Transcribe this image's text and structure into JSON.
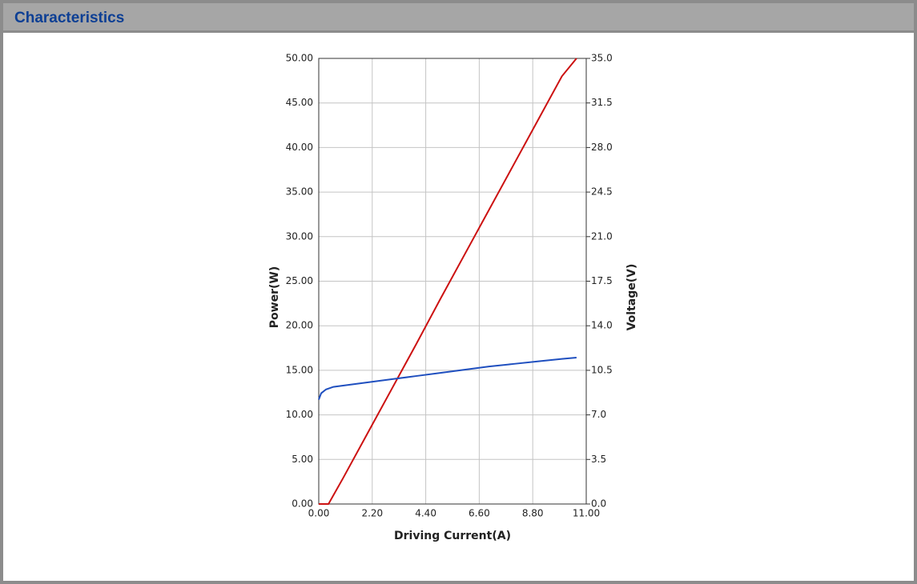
{
  "header": {
    "title": "Characteristics"
  },
  "chart_data": {
    "type": "line",
    "xlabel": "Driving Current(A)",
    "ylabel": "Power(W)",
    "y2label": "Voltage(V)",
    "xlim": [
      0,
      11
    ],
    "ylim": [
      0,
      50
    ],
    "y2lim": [
      0,
      35
    ],
    "xticks": [
      {
        "value": 0,
        "label": "0.00"
      },
      {
        "value": 2.2,
        "label": "2.20"
      },
      {
        "value": 4.4,
        "label": "4.40"
      },
      {
        "value": 6.6,
        "label": "6.60"
      },
      {
        "value": 8.8,
        "label": "8.80"
      },
      {
        "value": 11,
        "label": "11.00"
      }
    ],
    "yticks": [
      {
        "value": 0,
        "label": "0.00"
      },
      {
        "value": 5,
        "label": "5.00"
      },
      {
        "value": 10,
        "label": "10.00"
      },
      {
        "value": 15,
        "label": "15.00"
      },
      {
        "value": 20,
        "label": "20.00"
      },
      {
        "value": 25,
        "label": "25.00"
      },
      {
        "value": 30,
        "label": "30.00"
      },
      {
        "value": 35,
        "label": "35.00"
      },
      {
        "value": 40,
        "label": "40.00"
      },
      {
        "value": 45,
        "label": "45.00"
      },
      {
        "value": 50,
        "label": "50.00"
      }
    ],
    "y2ticks": [
      {
        "value": 0,
        "label": "0.0"
      },
      3.5,
      {
        "value": 7,
        "label": "7.0"
      },
      10.5,
      {
        "value": 14,
        "label": "14.0"
      },
      17.5,
      {
        "value": 21,
        "label": "21.0"
      },
      24.5,
      {
        "value": 28,
        "label": "28.0"
      },
      31.5,
      {
        "value": 35,
        "label": "35.0"
      }
    ],
    "grid": true,
    "series": [
      {
        "color": "#cc1111",
        "x": [
          0,
          0.4,
          1,
          2,
          3,
          4,
          5,
          6,
          7,
          8,
          9,
          10,
          10.6
        ],
        "values": [
          0,
          0,
          2.9,
          7.9,
          12.9,
          17.9,
          23,
          28,
          33,
          38,
          43,
          48,
          50
        ]
      },
      {
        "color": "#1f4fbf",
        "axis": "y2",
        "x": [
          0,
          0.1,
          0.3,
          0.6,
          1,
          2,
          3,
          4,
          5,
          6,
          7,
          8,
          9,
          10,
          10.6
        ],
        "values": [
          8.2,
          8.7,
          9.0,
          9.2,
          9.3,
          9.55,
          9.8,
          10.05,
          10.3,
          10.55,
          10.8,
          11.0,
          11.2,
          11.4,
          11.5
        ]
      }
    ]
  }
}
